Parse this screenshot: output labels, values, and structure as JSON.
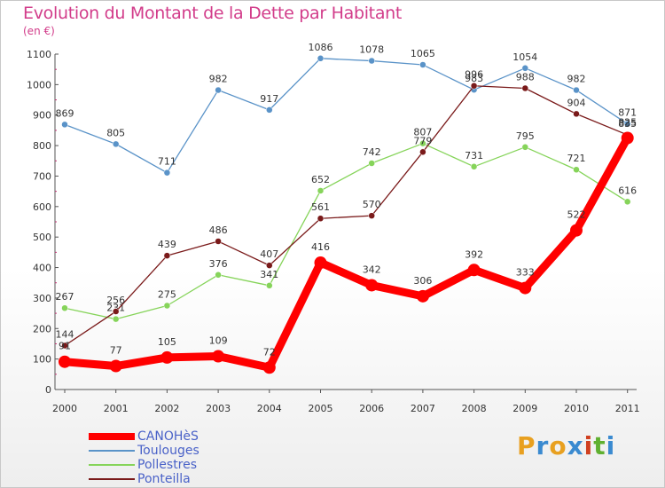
{
  "header": {
    "title": "Evolution du Montant de la Dette par Habitant",
    "subtitle": "(en €)"
  },
  "logo": {
    "letters": [
      "P",
      "r",
      "o",
      "x",
      "i",
      "t",
      "i"
    ],
    "colors": [
      "#e8a020",
      "#3a8ad0",
      "#e8a020",
      "#3a8ad0",
      "#d04020",
      "#60b030",
      "#3a8ad0"
    ]
  },
  "chart_data": {
    "type": "line",
    "title": "Evolution du Montant de la Dette par Habitant",
    "ylabel": "(en €)",
    "x": [
      "2000",
      "2001",
      "2002",
      "2003",
      "2004",
      "2005",
      "2006",
      "2007",
      "2008",
      "2009",
      "2010",
      "2011"
    ],
    "ylim": [
      0,
      1100
    ],
    "yticks": [
      0,
      100,
      200,
      300,
      400,
      500,
      600,
      700,
      800,
      900,
      1000,
      1100
    ],
    "grid": false,
    "legend_position": "bottom-left",
    "series": [
      {
        "name": "Toulouges",
        "color": "#5a93c8",
        "values": [
          869,
          805,
          711,
          982,
          917,
          1086,
          1078,
          1065,
          983,
          1054,
          982,
          871
        ]
      },
      {
        "name": "Pollestres",
        "color": "#86d45a",
        "values": [
          267,
          231,
          275,
          376,
          341,
          652,
          742,
          807,
          731,
          795,
          721,
          616
        ]
      },
      {
        "name": "Ponteilla",
        "color": "#7a1a1a",
        "values": [
          144,
          256,
          439,
          486,
          407,
          561,
          570,
          779,
          996,
          988,
          904,
          835
        ]
      },
      {
        "name": "CANOHèS",
        "color": "#ff0000",
        "values": [
          91,
          77,
          105,
          109,
          72,
          416,
          342,
          306,
          392,
          333,
          522,
          825
        ]
      }
    ],
    "legend_order": [
      "CANOHèS",
      "Toulouges",
      "Pollestres",
      "Ponteilla"
    ]
  }
}
